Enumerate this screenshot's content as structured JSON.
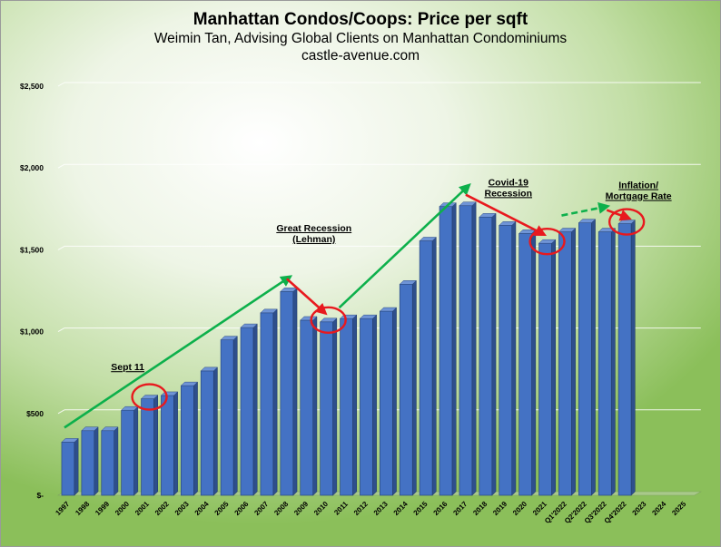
{
  "header": {
    "title": "Manhattan Condos/Coops: Price per sqft",
    "subtitle": "Weimin Tan, Advising Global Clients on Manhattan Condominiums",
    "website": "castle-avenue.com"
  },
  "chart_data": {
    "type": "bar",
    "title": "Manhattan Condos/Coops: Price per sqft",
    "subtitle": "Weimin Tan, Advising Global Clients on Manhattan Condominiums",
    "xlabel": "",
    "ylabel": "",
    "ylim": [
      0,
      2500
    ],
    "yticks": [
      0,
      500,
      1000,
      1500,
      2000,
      2500
    ],
    "ytick_labels": [
      "$-",
      "$500",
      "$1,000",
      "$1,500",
      "$2,000",
      "$2,500"
    ],
    "grid": true,
    "categories": [
      "1997",
      "1998",
      "1999",
      "2000",
      "2001",
      "2002",
      "2003",
      "2004",
      "2005",
      "2006",
      "2007",
      "2008",
      "2009",
      "2010",
      "2011",
      "2012",
      "2013",
      "2014",
      "2015",
      "2016",
      "2017",
      "2018",
      "2019",
      "2020",
      "2021",
      "Q1'2022",
      "Q2'2022",
      "Q3'2022",
      "Q4'2022",
      "2023",
      "2024",
      "2025"
    ],
    "values": [
      325,
      395,
      395,
      520,
      590,
      610,
      670,
      760,
      950,
      1025,
      1115,
      1245,
      1070,
      1060,
      1080,
      1080,
      1125,
      1290,
      1555,
      1765,
      1770,
      1700,
      1650,
      1600,
      1540,
      1610,
      1665,
      1610,
      1660,
      null,
      null,
      null
    ],
    "bar_color": "#4472C4",
    "annotations": [
      {
        "lines": [
          "Sept 11"
        ]
      },
      {
        "lines": [
          "Great Recession",
          "(Lehman)"
        ]
      },
      {
        "lines": [
          "Covid-19",
          "Recession"
        ]
      },
      {
        "lines": [
          "Inflation/",
          "Mortgage Rate"
        ]
      }
    ]
  }
}
